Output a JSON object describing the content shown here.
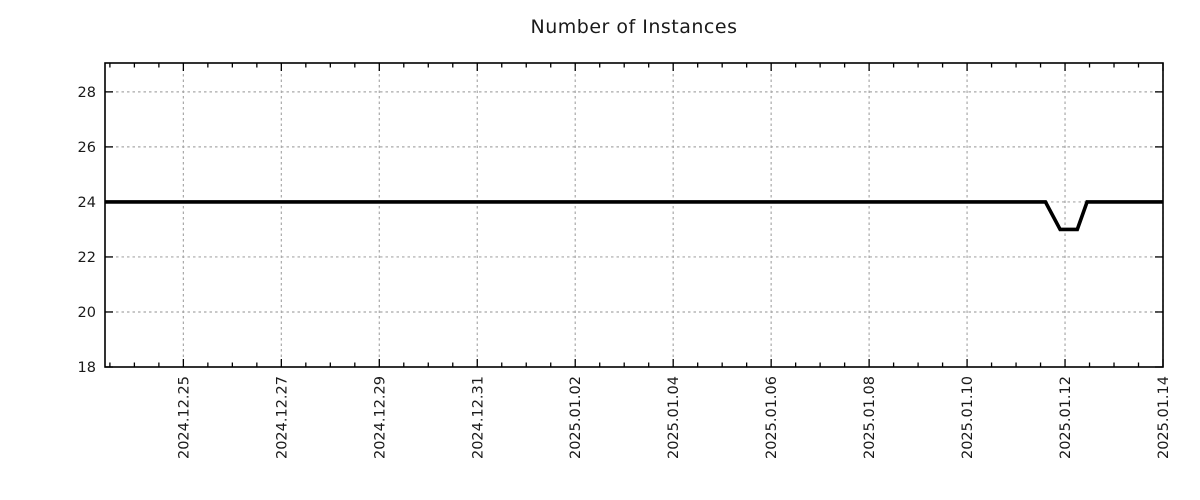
{
  "page": {
    "background": "#ffffff"
  },
  "chart_data": {
    "type": "line",
    "title": "Number of Instances",
    "legend": "none",
    "grid": "dotted",
    "colors": {
      "grid": "#a8a8a8",
      "axis": "#000000",
      "text": "#1a1a1a"
    },
    "x_axis": {
      "label": "",
      "tick_labels": [
        "2024.12.25",
        "2024.12.27",
        "2024.12.29",
        "2024.12.31",
        "2025.01.02",
        "2025.01.04",
        "2025.01.06",
        "2025.01.08",
        "2025.01.10",
        "2025.01.12",
        "2025.01.14"
      ],
      "tick_positions_days_from_2024_12_25": [
        0,
        2,
        4,
        6,
        8,
        10,
        12,
        14,
        16,
        18,
        20
      ],
      "minor_tick_interval_days": 0.5,
      "range_days": [
        -1.6,
        20
      ]
    },
    "y_axis": {
      "label": "",
      "tick_labels": [
        "18",
        "20",
        "22",
        "24",
        "26",
        "28"
      ],
      "tick_values": [
        18,
        20,
        22,
        24,
        26,
        28
      ],
      "range": [
        18,
        29.05
      ]
    },
    "series": [
      {
        "name": "instances",
        "color": "#000000",
        "line_width": 3.6,
        "points": [
          {
            "t_days": -1.6,
            "value": 24
          },
          {
            "t_days": 17.6,
            "value": 24
          },
          {
            "t_days": 17.9,
            "value": 23
          },
          {
            "t_days": 18.25,
            "value": 23
          },
          {
            "t_days": 18.45,
            "value": 24
          },
          {
            "t_days": 20,
            "value": 24
          }
        ]
      }
    ]
  }
}
